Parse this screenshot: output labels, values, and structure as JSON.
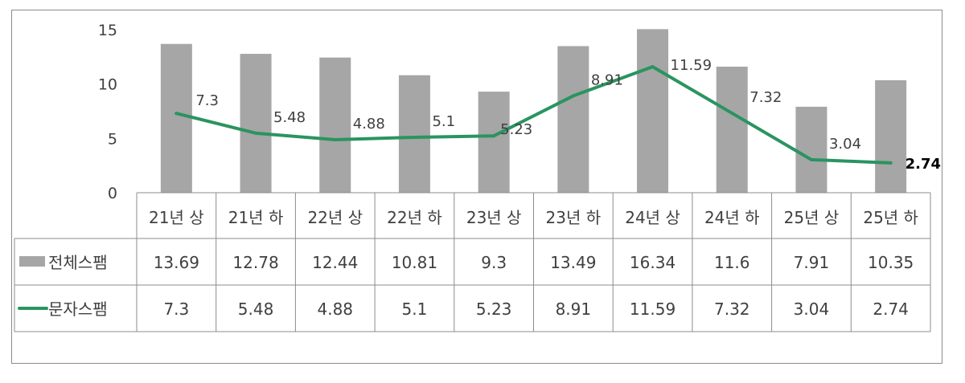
{
  "chart_data": {
    "type": "bar",
    "categories": [
      "21년 상",
      "21년 하",
      "22년 상",
      "22년 하",
      "23년 상",
      "23년 하",
      "24년 상",
      "24년 하",
      "25년 상",
      "25년 하"
    ],
    "series": [
      {
        "name": "전체스팸",
        "type": "bar",
        "color": "#a6a6a6",
        "values": [
          13.69,
          12.78,
          12.44,
          10.81,
          9.3,
          13.49,
          16.34,
          11.6,
          7.91,
          10.35
        ]
      },
      {
        "name": "문자스팸",
        "type": "line",
        "color": "#2a9460",
        "values": [
          7.3,
          5.48,
          4.88,
          5.1,
          5.23,
          8.91,
          11.59,
          7.32,
          3.04,
          2.74
        ]
      }
    ],
    "ylim": [
      0,
      15
    ],
    "yticks": [
      0,
      5,
      10,
      15
    ],
    "data_labels_series": "문자스팸",
    "data_table": true,
    "grid": false
  }
}
